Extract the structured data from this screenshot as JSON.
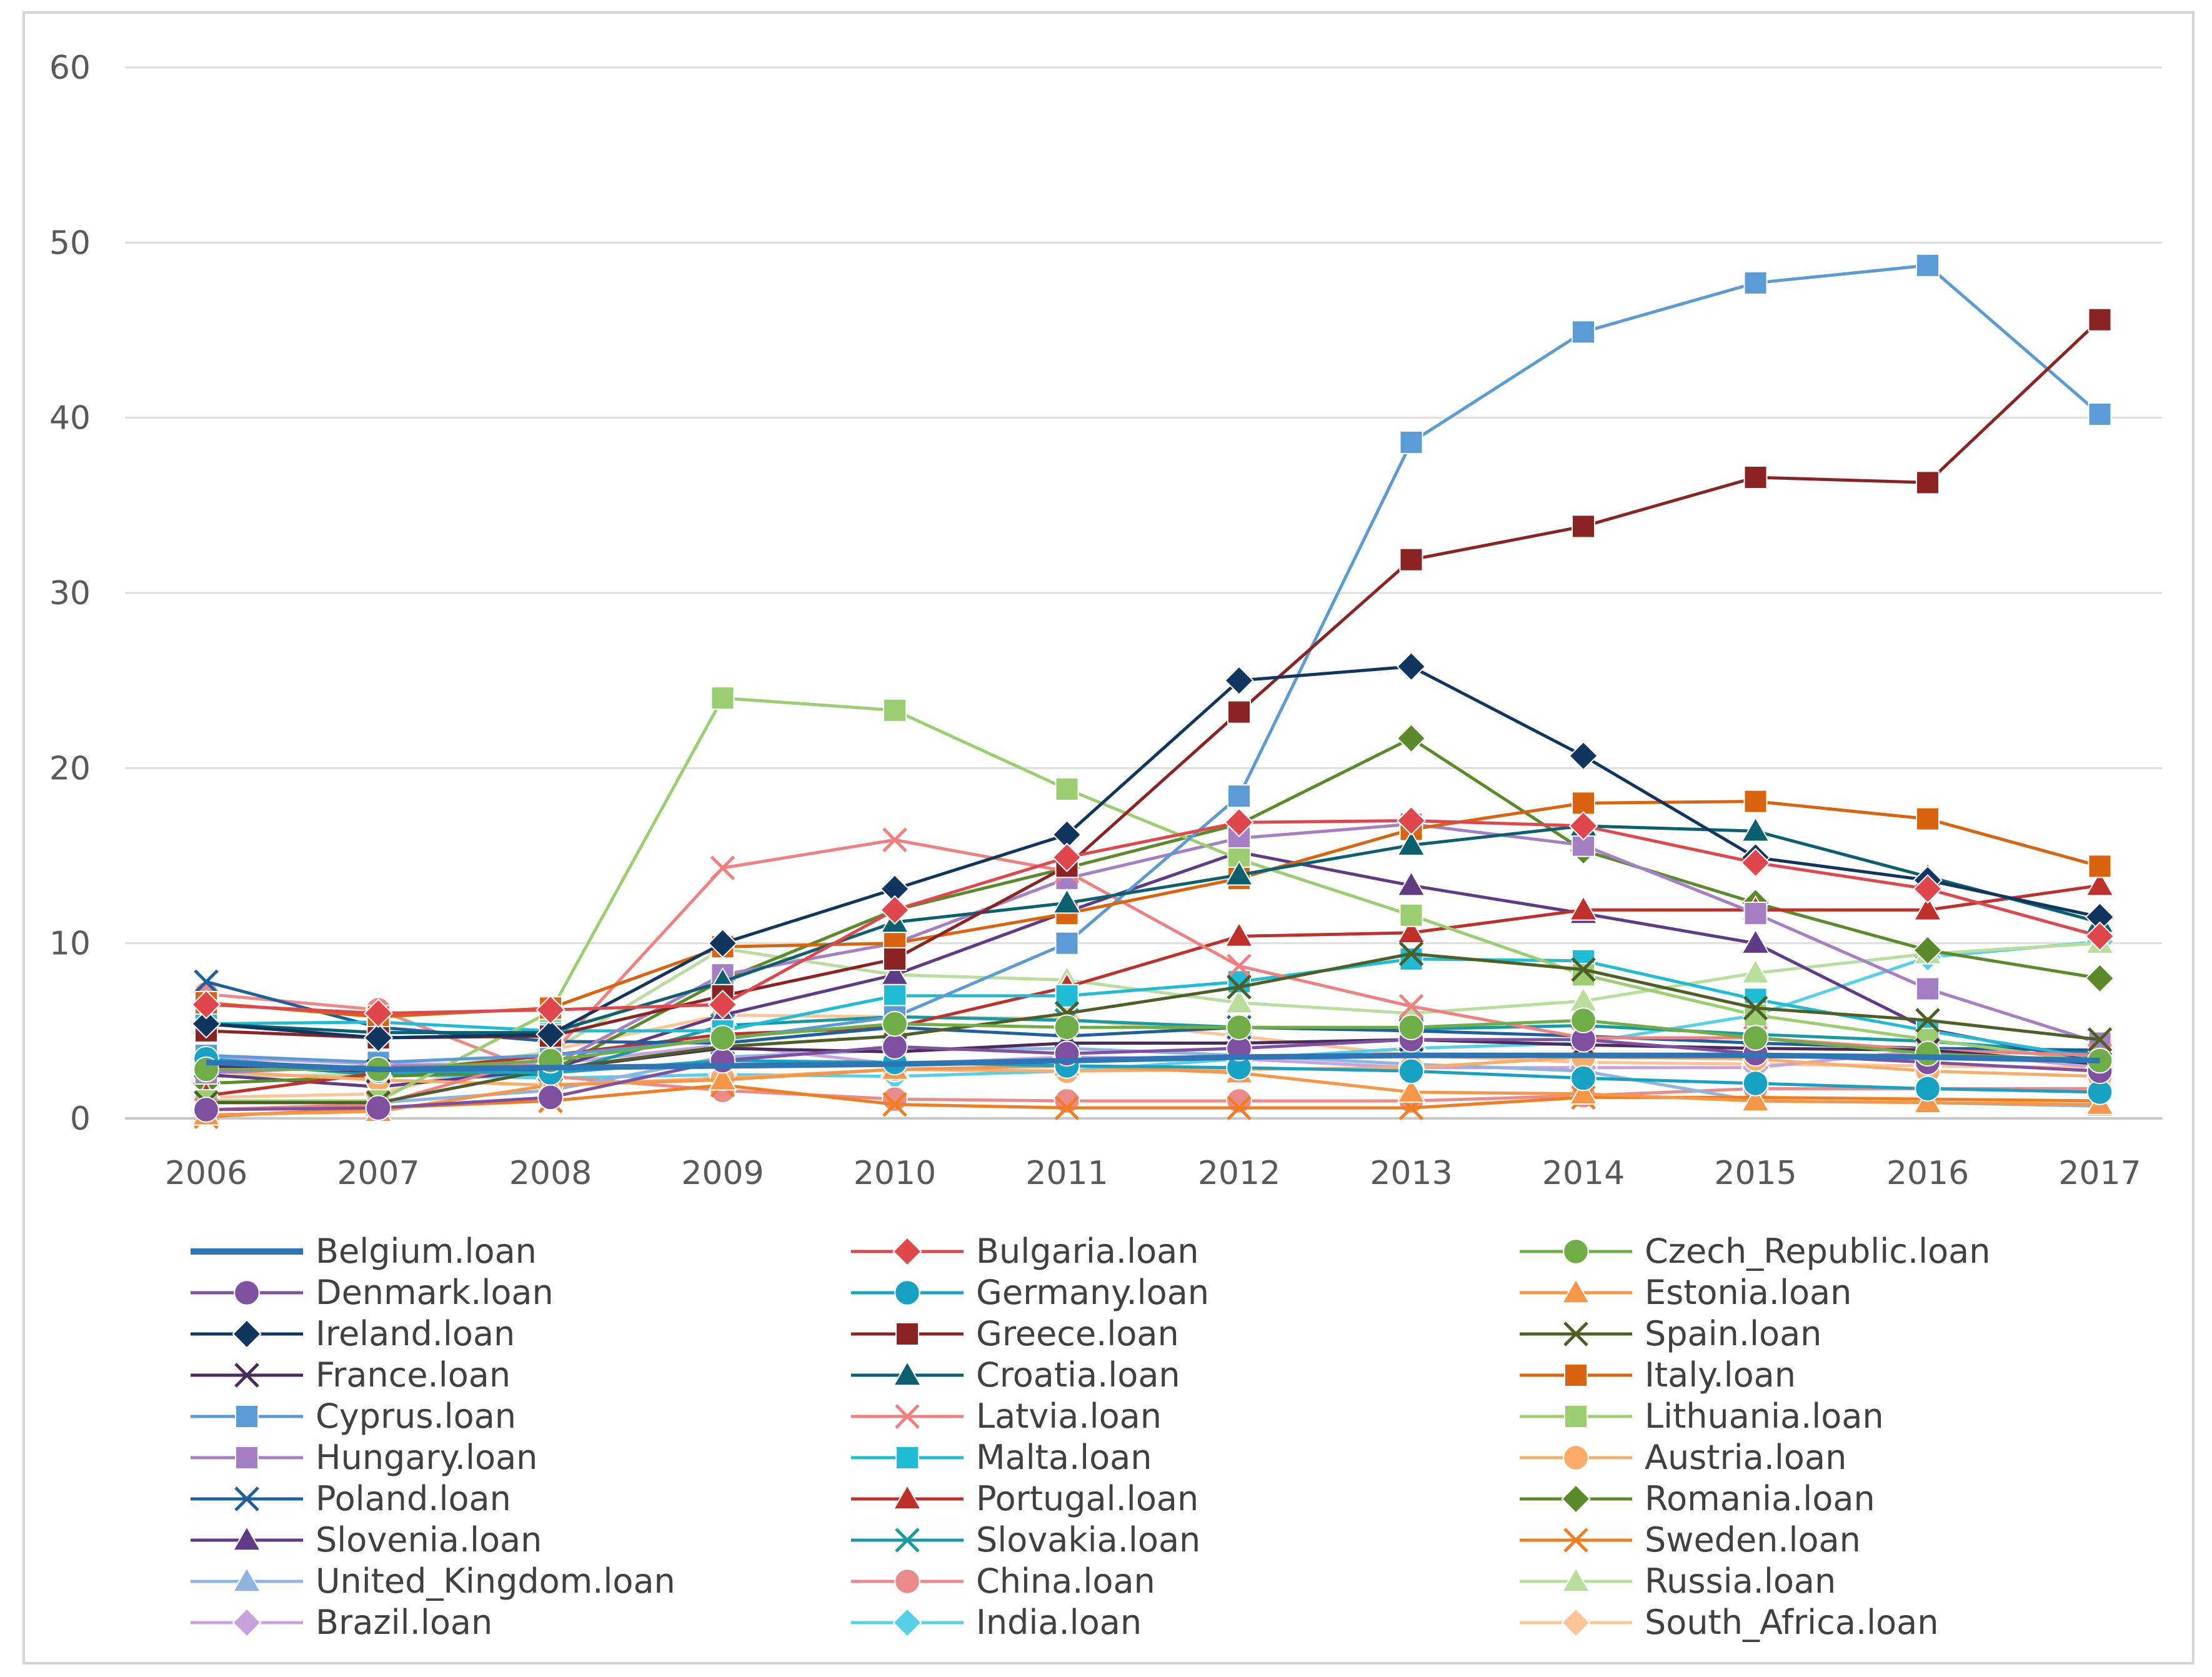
{
  "chart_data": {
    "type": "line",
    "title": "",
    "xlabel": "",
    "ylabel": "",
    "x": [
      "2006",
      "2007",
      "2008",
      "2009",
      "2010",
      "2011",
      "2012",
      "2013",
      "2014",
      "2015",
      "2016",
      "2017"
    ],
    "ylim": [
      0,
      60
    ],
    "yticks": [
      0,
      10,
      20,
      30,
      40,
      50,
      60
    ],
    "grid": true,
    "legend_position": "bottom",
    "series": [
      {
        "name": "Belgium.loan",
        "color": "#2e75b6",
        "marker": "none",
        "values": [
          3.2,
          2.8,
          2.9,
          3.0,
          3.1,
          3.3,
          3.5,
          3.6,
          3.6,
          3.6,
          3.5,
          3.3
        ]
      },
      {
        "name": "Bulgaria.loan",
        "color": "#e0474c",
        "marker": "diamond",
        "values": [
          6.5,
          6.0,
          6.2,
          6.5,
          11.9,
          14.9,
          16.9,
          17.0,
          16.7,
          14.6,
          13.1,
          10.4
        ]
      },
      {
        "name": "Czech_Republic.loan",
        "color": "#70ad47",
        "marker": "circle",
        "values": [
          2.8,
          2.8,
          3.3,
          4.6,
          5.4,
          5.2,
          5.2,
          5.2,
          5.6,
          4.6,
          3.7,
          3.3
        ]
      },
      {
        "name": "Denmark.loan",
        "color": "#7f4fa0",
        "marker": "circle",
        "values": [
          0.5,
          0.6,
          1.2,
          3.3,
          4.1,
          3.7,
          4.0,
          4.5,
          4.5,
          3.7,
          3.2,
          2.7
        ]
      },
      {
        "name": "Germany.loan",
        "color": "#17a2c4",
        "marker": "circle",
        "values": [
          3.4,
          2.7,
          2.6,
          3.3,
          3.2,
          3.0,
          2.9,
          2.7,
          2.3,
          2.0,
          1.7,
          1.5
        ]
      },
      {
        "name": "Estonia.loan",
        "color": "#f79646",
        "marker": "triangle",
        "values": [
          0.2,
          0.4,
          1.9,
          2.2,
          2.8,
          3.0,
          2.6,
          1.5,
          1.4,
          1.0,
          0.9,
          0.8
        ]
      },
      {
        "name": "Ireland.loan",
        "color": "#10355e",
        "marker": "diamond",
        "values": [
          5.4,
          4.6,
          4.8,
          10.0,
          13.1,
          16.2,
          25.0,
          25.8,
          20.7,
          14.9,
          13.6,
          11.5
        ]
      },
      {
        "name": "Greece.loan",
        "color": "#8b2323",
        "marker": "square",
        "values": [
          5.0,
          4.6,
          4.7,
          7.0,
          9.1,
          14.4,
          23.2,
          31.9,
          33.8,
          36.6,
          36.3,
          45.6
        ]
      },
      {
        "name": "Spain.loan",
        "color": "#4d5f26",
        "marker": "x",
        "values": [
          0.9,
          0.9,
          2.8,
          4.1,
          4.7,
          6.0,
          7.5,
          9.4,
          8.5,
          6.3,
          5.6,
          4.5
        ]
      },
      {
        "name": "France.loan",
        "color": "#4a2b5a",
        "marker": "x",
        "values": [
          3.0,
          2.7,
          2.8,
          4.0,
          3.8,
          4.3,
          4.3,
          4.5,
          4.2,
          4.0,
          3.9,
          3.1
        ]
      },
      {
        "name": "Croatia.loan",
        "color": "#0b6070",
        "marker": "triangle",
        "values": [
          5.4,
          4.9,
          4.9,
          7.8,
          11.2,
          12.3,
          13.9,
          15.6,
          16.7,
          16.4,
          13.8,
          11.2
        ]
      },
      {
        "name": "Italy.loan",
        "color": "#d9630e",
        "marker": "square",
        "values": [
          6.6,
          5.8,
          6.3,
          9.8,
          10.0,
          11.7,
          13.7,
          16.5,
          18.0,
          18.1,
          17.1,
          14.4
        ]
      },
      {
        "name": "Cyprus.loan",
        "color": "#5b9bd5",
        "marker": "square",
        "values": [
          3.6,
          3.2,
          3.6,
          4.5,
          5.8,
          10.0,
          18.4,
          38.6,
          44.9,
          47.7,
          48.7,
          40.2
        ]
      },
      {
        "name": "Latvia.loan",
        "color": "#f08080",
        "marker": "x",
        "values": [
          0.5,
          0.8,
          3.6,
          14.3,
          15.9,
          14.1,
          8.7,
          6.4,
          4.6,
          4.6,
          3.9,
          3.6
        ]
      },
      {
        "name": "Lithuania.loan",
        "color": "#9bce70",
        "marker": "square",
        "values": [
          1.0,
          1.0,
          6.1,
          24.0,
          23.3,
          18.8,
          14.8,
          11.6,
          8.2,
          5.9,
          4.5,
          3.2
        ]
      },
      {
        "name": "Hungary.loan",
        "color": "#a47fc4",
        "marker": "square",
        "values": [
          2.6,
          3.0,
          3.0,
          8.2,
          10.0,
          13.7,
          16.0,
          16.8,
          15.6,
          11.7,
          7.4,
          4.3
        ]
      },
      {
        "name": "Malta.loan",
        "color": "#1fbcd6",
        "marker": "square",
        "values": [
          5.4,
          5.5,
          5.0,
          5.0,
          7.0,
          7.0,
          7.8,
          9.1,
          9.0,
          6.8,
          5.0,
          3.4
        ]
      },
      {
        "name": "Austria.loan",
        "color": "#fbac6a",
        "marker": "circle",
        "values": [
          2.7,
          2.2,
          1.9,
          2.3,
          2.8,
          2.7,
          2.8,
          2.9,
          3.5,
          3.4,
          2.7,
          2.4
        ]
      },
      {
        "name": "Poland.loan",
        "color": "#1f5f9e",
        "marker": "x",
        "values": [
          7.8,
          5.2,
          4.4,
          4.3,
          5.2,
          4.7,
          5.2,
          5.0,
          4.7,
          4.3,
          4.0,
          3.9
        ]
      },
      {
        "name": "Portugal.loan",
        "color": "#c0302a",
        "marker": "triangle",
        "values": [
          1.3,
          2.6,
          3.6,
          4.8,
          5.2,
          7.5,
          10.4,
          10.6,
          11.9,
          11.9,
          11.9,
          13.3
        ]
      },
      {
        "name": "Romania.loan",
        "color": "#5a8a2a",
        "marker": "diamond",
        "values": [
          2.0,
          2.4,
          2.7,
          7.9,
          11.9,
          14.3,
          16.8,
          21.7,
          15.3,
          12.3,
          9.6,
          8.0
        ]
      },
      {
        "name": "Slovenia.loan",
        "color": "#5e3a87",
        "marker": "triangle",
        "values": [
          2.5,
          1.8,
          2.8,
          5.9,
          8.2,
          11.8,
          15.2,
          13.3,
          11.7,
          10.0,
          5.1,
          3.2
        ]
      },
      {
        "name": "Slovakia.loan",
        "color": "#169aa4",
        "marker": "x",
        "values": [
          3.2,
          2.5,
          2.5,
          5.3,
          5.8,
          5.6,
          5.2,
          5.1,
          5.3,
          4.8,
          4.4,
          3.7
        ]
      },
      {
        "name": "Sweden.loan",
        "color": "#f07d20",
        "marker": "x",
        "values": [
          0.1,
          0.6,
          1.0,
          1.9,
          0.8,
          0.6,
          0.6,
          0.6,
          1.2,
          1.2,
          1.1,
          1.0
        ]
      },
      {
        "name": "United_Kingdom.loan",
        "color": "#8fb4e0",
        "marker": "triangle",
        "values": [
          0.9,
          0.9,
          1.6,
          3.5,
          3.9,
          4.0,
          3.6,
          3.1,
          2.7,
          1.0,
          0.9,
          0.7
        ]
      },
      {
        "name": "China.loan",
        "color": "#eb8a8a",
        "marker": "circle",
        "values": [
          7.1,
          6.2,
          2.4,
          1.6,
          1.1,
          1.0,
          1.0,
          1.0,
          1.3,
          1.7,
          1.7,
          1.7
        ]
      },
      {
        "name": "Russia.loan",
        "color": "#b8dd9c",
        "marker": "triangle",
        "values": [
          2.4,
          2.5,
          3.8,
          9.7,
          8.2,
          7.9,
          6.6,
          6.0,
          6.7,
          8.3,
          9.4,
          10.0
        ]
      },
      {
        "name": "Brazil.loan",
        "color": "#c6a3dc",
        "marker": "diamond",
        "values": [
          3.5,
          3.1,
          3.1,
          4.2,
          3.1,
          3.5,
          3.4,
          2.9,
          2.9,
          2.9,
          3.9,
          2.9
        ]
      },
      {
        "name": "India.loan",
        "color": "#56d0e6",
        "marker": "diamond",
        "values": [
          3.4,
          2.5,
          2.3,
          2.5,
          2.4,
          2.7,
          3.4,
          4.0,
          4.3,
          5.9,
          9.2,
          10.1
        ]
      },
      {
        "name": "South_Africa.loan",
        "color": "#fbc596",
        "marker": "diamond",
        "values": [
          1.2,
          1.4,
          3.9,
          5.9,
          5.8,
          5.7,
          4.7,
          3.6,
          3.2,
          3.1,
          3.0,
          2.9
        ]
      }
    ]
  }
}
